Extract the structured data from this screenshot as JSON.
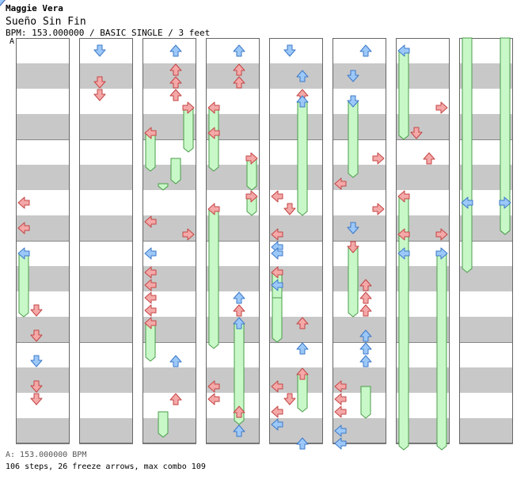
{
  "header": {
    "artist": "Maggie Vera",
    "title": "Sueño Sin Fin",
    "info": "BPM: 153.000000 / BASIC SINGLE / 3 feet",
    "bpm_marker": "A"
  },
  "footer": {
    "bpm_legend": "A: 153.000000 BPM",
    "stats": "106 steps, 26 freeze arrows, max combo 109"
  },
  "colors": {
    "quarter_note": "#f4a8a8",
    "quarter_note_stroke": "#c44444",
    "eighth_note": "#9cc8f8",
    "eighth_note_stroke": "#3b78c8",
    "freeze": "#c8f8c8",
    "freeze_stroke": "#4a9c4a",
    "stripe": "#c8c8c8"
  },
  "chart": {
    "columns": 8,
    "beats_per_column": 16,
    "notes": [
      {
        "c": 0,
        "b": 6.5,
        "l": 0,
        "k": "r"
      },
      {
        "c": 0,
        "b": 7.5,
        "l": 0,
        "k": "r"
      },
      {
        "c": 0,
        "b": 8.5,
        "l": 0,
        "k": "b"
      },
      {
        "c": 0,
        "b": 10.75,
        "l": 1,
        "k": "r"
      },
      {
        "c": 0,
        "b": 11.75,
        "l": 1,
        "k": "r"
      },
      {
        "c": 0,
        "b": 12.75,
        "l": 1,
        "k": "b"
      },
      {
        "c": 0,
        "b": 13.75,
        "l": 1,
        "k": "r"
      },
      {
        "c": 0,
        "b": 14.25,
        "l": 1,
        "k": "r"
      },
      {
        "c": 0,
        "b": 15.75,
        "l": 0.75,
        "k": "r"
      },
      {
        "c": 1,
        "b": 0.5,
        "l": 1,
        "k": "b"
      },
      {
        "c": 1,
        "b": 1.75,
        "l": 1,
        "k": "r"
      },
      {
        "c": 1,
        "b": 2.25,
        "l": 1,
        "k": "r"
      },
      {
        "c": 1,
        "b": 4.75,
        "l": 1.25,
        "k": "r"
      },
      {
        "c": 1,
        "b": 5.5,
        "l": 1.25,
        "k": "b"
      },
      {
        "c": 1,
        "b": 6.75,
        "l": 1.25,
        "k": "r"
      },
      {
        "c": 1,
        "b": 7.25,
        "l": 1.25,
        "k": "r"
      },
      {
        "c": 1,
        "b": 7.5,
        "l": 0.25,
        "k": "r"
      },
      {
        "c": 1,
        "b": 8.5,
        "l": 0.25,
        "k": "b"
      },
      {
        "c": 1,
        "b": 9.75,
        "l": 0.25,
        "k": "r"
      },
      {
        "c": 1,
        "b": 10.25,
        "l": 0.25,
        "k": "r"
      },
      {
        "c": 1,
        "b": 11.75,
        "l": 0.75,
        "k": "r"
      },
      {
        "c": 1,
        "b": 12.75,
        "l": 0.75,
        "k": "b"
      },
      {
        "c": 1,
        "b": 13.25,
        "l": 0.75,
        "k": "b"
      },
      {
        "c": 1,
        "b": 13.75,
        "l": 0.75,
        "k": "r"
      },
      {
        "c": 1,
        "b": 15.75,
        "l": 1.25,
        "k": "r"
      },
      {
        "c": 2,
        "b": 0.5,
        "l": 2,
        "k": "b"
      },
      {
        "c": 2,
        "b": 1.25,
        "l": 2,
        "k": "r"
      },
      {
        "c": 2,
        "b": 1.75,
        "l": 2,
        "k": "r"
      },
      {
        "c": 2,
        "b": 2.25,
        "l": 2,
        "k": "r"
      },
      {
        "c": 2,
        "b": 2.75,
        "l": 3,
        "k": "r"
      },
      {
        "c": 2,
        "b": 3.75,
        "l": 0,
        "k": "r"
      },
      {
        "c": 2,
        "b": 4.75,
        "l": 1.25,
        "k": "r"
      },
      {
        "c": 2,
        "b": 5.25,
        "l": 1.25,
        "k": "b"
      },
      {
        "c": 2,
        "b": 7.75,
        "l": 3,
        "k": "r"
      },
      {
        "c": 2,
        "b": 7.25,
        "l": 0,
        "k": "r"
      },
      {
        "c": 2,
        "b": 8.5,
        "l": 0,
        "k": "b"
      },
      {
        "c": 2,
        "b": 9.25,
        "l": 0,
        "k": "r"
      },
      {
        "c": 2,
        "b": 9.75,
        "l": 0,
        "k": "r"
      },
      {
        "c": 2,
        "b": 10.25,
        "l": 0,
        "k": "r"
      },
      {
        "c": 2,
        "b": 10.75,
        "l": 0,
        "k": "r"
      },
      {
        "c": 2,
        "b": 11.25,
        "l": 0,
        "k": "r"
      },
      {
        "c": 2,
        "b": 12.75,
        "l": 2,
        "k": "b"
      },
      {
        "c": 2,
        "b": 13.75,
        "l": 1.25,
        "k": "r"
      },
      {
        "c": 2,
        "b": 14.25,
        "l": 2,
        "k": "r"
      },
      {
        "c": 2,
        "b": 14.75,
        "l": 1.25,
        "k": "r"
      },
      {
        "c": 3,
        "b": 0.5,
        "l": 2,
        "k": "b"
      },
      {
        "c": 3,
        "b": 1.25,
        "l": 2,
        "k": "r"
      },
      {
        "c": 3,
        "b": 1.75,
        "l": 2,
        "k": "r"
      },
      {
        "c": 3,
        "b": 2.75,
        "l": 0,
        "k": "r"
      },
      {
        "c": 3,
        "b": 3.75,
        "l": 0,
        "k": "r"
      },
      {
        "c": 3,
        "b": 4.75,
        "l": 3,
        "k": "r"
      },
      {
        "c": 3,
        "b": 6.25,
        "l": 3,
        "k": "r"
      },
      {
        "c": 3,
        "b": 6.75,
        "l": 0,
        "k": "r"
      },
      {
        "c": 3,
        "b": 10.25,
        "l": 2,
        "k": "b"
      },
      {
        "c": 3,
        "b": 10.75,
        "l": 2,
        "k": "r"
      },
      {
        "c": 3,
        "b": 11.25,
        "l": 2,
        "k": "b"
      },
      {
        "c": 3,
        "b": 13.75,
        "l": 0,
        "k": "r"
      },
      {
        "c": 3,
        "b": 14.25,
        "l": 0,
        "k": "r"
      },
      {
        "c": 3,
        "b": 14.75,
        "l": 2,
        "k": "r"
      },
      {
        "c": 3,
        "b": 15.5,
        "l": 2,
        "k": "b"
      },
      {
        "c": 3,
        "b": 16.0,
        "l": 1.5,
        "k": "b"
      },
      {
        "c": 4,
        "b": 0.5,
        "l": 1,
        "k": "b"
      },
      {
        "c": 4,
        "b": 1.5,
        "l": 2,
        "k": "b"
      },
      {
        "c": 4,
        "b": 2.25,
        "l": 2,
        "k": "r"
      },
      {
        "c": 4,
        "b": 2.5,
        "l": 2,
        "k": "b"
      },
      {
        "c": 4,
        "b": 6.25,
        "l": 0,
        "k": "r"
      },
      {
        "c": 4,
        "b": 6.75,
        "l": 1,
        "k": "r"
      },
      {
        "c": 4,
        "b": 7.75,
        "l": 0,
        "k": "r"
      },
      {
        "c": 4,
        "b": 8.25,
        "l": 0,
        "k": "b"
      },
      {
        "c": 4,
        "b": 8.5,
        "l": 0,
        "k": "b"
      },
      {
        "c": 4,
        "b": 9.25,
        "l": 0,
        "k": "r"
      },
      {
        "c": 4,
        "b": 9.75,
        "l": 0,
        "k": "b"
      },
      {
        "c": 4,
        "b": 11.25,
        "l": 2,
        "k": "r"
      },
      {
        "c": 4,
        "b": 12.25,
        "l": 2,
        "k": "b"
      },
      {
        "c": 4,
        "b": 13.25,
        "l": 2,
        "k": "r"
      },
      {
        "c": 4,
        "b": 13.75,
        "l": 0,
        "k": "r"
      },
      {
        "c": 4,
        "b": 14.25,
        "l": 1,
        "k": "r"
      },
      {
        "c": 4,
        "b": 14.75,
        "l": 0,
        "k": "r"
      },
      {
        "c": 4,
        "b": 15.25,
        "l": 0,
        "k": "b"
      },
      {
        "c": 4,
        "b": 16.0,
        "l": 2,
        "k": "b"
      },
      {
        "c": 5,
        "b": 0.5,
        "l": 2,
        "k": "b"
      },
      {
        "c": 5,
        "b": 1.5,
        "l": 1,
        "k": "b"
      },
      {
        "c": 5,
        "b": 2.5,
        "l": 1,
        "k": "b"
      },
      {
        "c": 5,
        "b": 4.75,
        "l": 3,
        "k": "r"
      },
      {
        "c": 5,
        "b": 5.75,
        "l": 0,
        "k": "r"
      },
      {
        "c": 5,
        "b": 6.75,
        "l": 3,
        "k": "r"
      },
      {
        "c": 5,
        "b": 7.5,
        "l": 1,
        "k": "b"
      },
      {
        "c": 5,
        "b": 8.25,
        "l": 1,
        "k": "r"
      },
      {
        "c": 5,
        "b": 9.75,
        "l": 2,
        "k": "r"
      },
      {
        "c": 5,
        "b": 10.25,
        "l": 2,
        "k": "r"
      },
      {
        "c": 5,
        "b": 10.75,
        "l": 2,
        "k": "r"
      },
      {
        "c": 5,
        "b": 11.75,
        "l": 2,
        "k": "b"
      },
      {
        "c": 5,
        "b": 12.25,
        "l": 2,
        "k": "b"
      },
      {
        "c": 5,
        "b": 12.75,
        "l": 2,
        "k": "b"
      },
      {
        "c": 5,
        "b": 13.75,
        "l": 0,
        "k": "r"
      },
      {
        "c": 5,
        "b": 14.25,
        "l": 0,
        "k": "r"
      },
      {
        "c": 5,
        "b": 14.75,
        "l": 0,
        "k": "r"
      },
      {
        "c": 5,
        "b": 15.5,
        "l": 0,
        "k": "b"
      },
      {
        "c": 5,
        "b": 16.0,
        "l": 0,
        "k": "b"
      },
      {
        "c": 6,
        "b": 0.5,
        "l": 0,
        "k": "b"
      },
      {
        "c": 6,
        "b": 2.75,
        "l": 3,
        "k": "r"
      },
      {
        "c": 6,
        "b": 3.75,
        "l": 1,
        "k": "r"
      },
      {
        "c": 6,
        "b": 4.75,
        "l": 2,
        "k": "r"
      },
      {
        "c": 6,
        "b": 6.25,
        "l": 0,
        "k": "r"
      },
      {
        "c": 6,
        "b": 7.75,
        "l": 0,
        "k": "r"
      },
      {
        "c": 6,
        "b": 7.75,
        "l": 3,
        "k": "r"
      },
      {
        "c": 6,
        "b": 8.5,
        "l": 0,
        "k": "b"
      },
      {
        "c": 6,
        "b": 8.5,
        "l": 3,
        "k": "b"
      },
      {
        "c": 7,
        "b": 6.5,
        "l": 0,
        "k": "b"
      },
      {
        "c": 7,
        "b": 6.5,
        "l": 3,
        "k": "b"
      }
    ],
    "freezes": [
      {
        "c": 0,
        "s": 8.5,
        "e": 11.0,
        "l": 0
      },
      {
        "c": 2,
        "s": 2.75,
        "e": 4.5,
        "l": 3
      },
      {
        "c": 2,
        "s": 3.75,
        "e": 5.25,
        "l": 0
      },
      {
        "c": 2,
        "s": 4.75,
        "e": 5.75,
        "l": 2
      },
      {
        "c": 2,
        "s": 5.75,
        "e": 6.0,
        "l": 1
      },
      {
        "c": 2,
        "s": 11.25,
        "e": 12.75,
        "l": 0
      },
      {
        "c": 2,
        "s": 14.75,
        "e": 15.75,
        "l": 1
      },
      {
        "c": 3,
        "s": 2.75,
        "e": 4.5,
        "l": 0
      },
      {
        "c": 3,
        "s": 3.75,
        "e": 5.25,
        "l": 0
      },
      {
        "c": 3,
        "s": 4.75,
        "e": 6.0,
        "l": 3
      },
      {
        "c": 3,
        "s": 6.25,
        "e": 7.0,
        "l": 3
      },
      {
        "c": 3,
        "s": 6.75,
        "e": 12.25,
        "l": 0
      },
      {
        "c": 3,
        "s": 11.25,
        "e": 15.25,
        "l": 2
      },
      {
        "c": 4,
        "s": 2.5,
        "e": 7.0,
        "l": 2
      },
      {
        "c": 4,
        "s": 9.25,
        "e": 10.75,
        "l": 0
      },
      {
        "c": 4,
        "s": 10.25,
        "e": 12.0,
        "l": 0
      },
      {
        "c": 4,
        "s": 13.25,
        "e": 14.75,
        "l": 2
      },
      {
        "c": 5,
        "s": 2.5,
        "e": 5.5,
        "l": 1
      },
      {
        "c": 5,
        "s": 8.25,
        "e": 11.0,
        "l": 1
      },
      {
        "c": 5,
        "s": 13.75,
        "e": 15.0,
        "l": 2
      },
      {
        "c": 6,
        "s": 0.5,
        "e": 4.0,
        "l": 0
      },
      {
        "c": 6,
        "s": 6.25,
        "e": 8.75,
        "l": 0
      },
      {
        "c": 6,
        "s": 8.5,
        "e": 16.4,
        "l": 0
      },
      {
        "c": 6,
        "s": 8.5,
        "e": 16.4,
        "l": 3
      },
      {
        "c": 7,
        "s": 0,
        "e": 7.75,
        "l": 0
      },
      {
        "c": 7,
        "s": 0,
        "e": 7.75,
        "l": 3
      },
      {
        "c": 7,
        "s": 6.5,
        "e": 9.25,
        "l": 0
      },
      {
        "c": 7,
        "s": 6.5,
        "e": 7.75,
        "l": 3
      }
    ]
  }
}
